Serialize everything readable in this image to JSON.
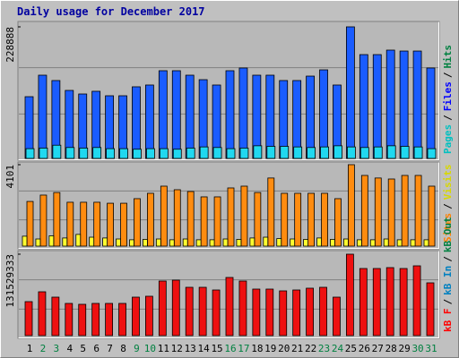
{
  "chart_data": [
    {
      "type": "bar",
      "title": "Daily usage for December 2017",
      "categories": [
        "1",
        "2",
        "3",
        "4",
        "5",
        "6",
        "7",
        "8",
        "9",
        "10",
        "11",
        "12",
        "13",
        "14",
        "15",
        "16",
        "17",
        "18",
        "19",
        "20",
        "21",
        "22",
        "23",
        "24",
        "25",
        "26",
        "27",
        "28",
        "29",
        "30",
        "31"
      ],
      "category_colors": [
        "#000000",
        "#008040",
        "#008040",
        "#000000",
        "#000000",
        "#000000",
        "#000000",
        "#000000",
        "#008040",
        "#008040",
        "#000000",
        "#000000",
        "#000000",
        "#000000",
        "#000000",
        "#008040",
        "#008040",
        "#000000",
        "#000000",
        "#000000",
        "#000000",
        "#000000",
        "#008040",
        "#008040",
        "#000000",
        "#000000",
        "#000000",
        "#000000",
        "#000000",
        "#008040",
        "#008040"
      ],
      "ylim": [
        0,
        228888
      ],
      "yticks": [
        228888
      ],
      "legend_separator": "/",
      "legend": [
        {
          "label": "Pages",
          "color": "#00c0c0"
        },
        {
          "label": "Files",
          "color": "#0000ff"
        },
        {
          "label": "Hits",
          "color": "#008040"
        }
      ],
      "series": [
        {
          "name": "Files",
          "color": "#1a5cff",
          "values": [
            107400,
            144800,
            135500,
            118300,
            112100,
            116800,
            109000,
            109000,
            124600,
            127700,
            152600,
            152600,
            144800,
            137000,
            127700,
            152600,
            157300,
            144800,
            144800,
            135500,
            135500,
            143200,
            154100,
            127700,
            228888,
            180600,
            180600,
            188400,
            186800,
            186800,
            157300
          ]
        },
        {
          "name": "Pages",
          "color": "#20d8f0",
          "values": [
            17000,
            18000,
            23000,
            19000,
            18000,
            19000,
            17000,
            17000,
            16000,
            17000,
            17000,
            16000,
            18000,
            20000,
            19000,
            17000,
            18000,
            22000,
            21000,
            21000,
            20000,
            19000,
            20000,
            22000,
            20000,
            19000,
            20000,
            22000,
            21000,
            20000,
            17000
          ]
        }
      ]
    },
    {
      "type": "bar",
      "ylim": [
        0,
        4101
      ],
      "yticks": [
        4101
      ],
      "legend_separator": "/",
      "legend": [
        {
          "label": "Sites",
          "color": "#ff8000"
        },
        {
          "label": "Visits",
          "color": "#d8d800"
        }
      ],
      "series": [
        {
          "name": "Sites",
          "color": "#ff8c10",
          "values": [
            2250,
            2570,
            2700,
            2210,
            2210,
            2210,
            2160,
            2160,
            2390,
            2660,
            3020,
            2840,
            2750,
            2480,
            2480,
            2930,
            3020,
            2700,
            3430,
            2660,
            2660,
            2660,
            2660,
            2390,
            4101,
            3560,
            3430,
            3380,
            3560,
            3560,
            3020
          ]
        },
        {
          "name": "Visits",
          "color": "#ffff30",
          "values": [
            500,
            360,
            520,
            410,
            590,
            450,
            410,
            360,
            320,
            340,
            360,
            320,
            360,
            320,
            320,
            360,
            340,
            410,
            450,
            380,
            360,
            340,
            410,
            340,
            360,
            320,
            320,
            360,
            320,
            320,
            320
          ]
        }
      ]
    },
    {
      "type": "bar",
      "ylim": [
        0,
        131529333
      ],
      "yticks": [
        131529333
      ],
      "legend_separator": "/",
      "legend": [
        {
          "label": "kB F",
          "color": "#ff0000"
        },
        {
          "label": "kB In",
          "color": "#0080c0"
        },
        {
          "label": "kB Out",
          "color": "#008040"
        }
      ],
      "series": [
        {
          "name": "kB F",
          "color": "#ee1010",
          "values": [
            54920000,
            70820000,
            62150000,
            52030000,
            50590000,
            52030000,
            52030000,
            52030000,
            62150000,
            63600000,
            88170000,
            89610000,
            78050000,
            78050000,
            73710000,
            93950000,
            88170000,
            75160000,
            75160000,
            72270000,
            73710000,
            76600000,
            78050000,
            62150000,
            131529333,
            108400000,
            108400000,
            109850000,
            108400000,
            112740000,
            85280000
          ]
        }
      ]
    }
  ]
}
